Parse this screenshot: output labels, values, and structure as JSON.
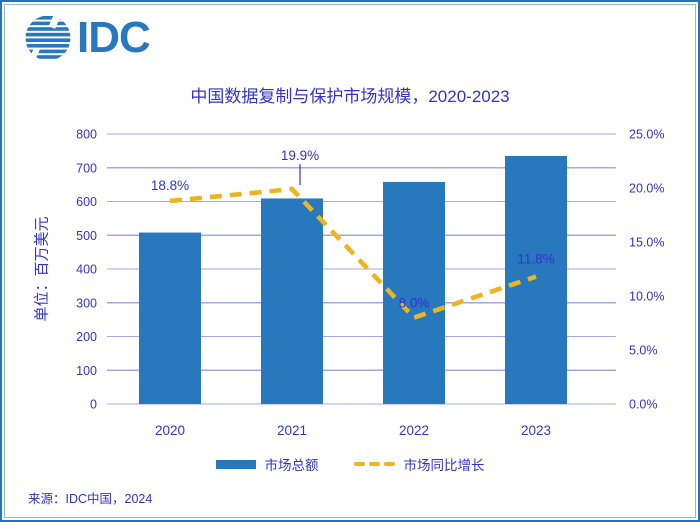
{
  "logo": {
    "text": "IDC"
  },
  "title": "中国数据复制与保护市场规模，2020-2023",
  "source": "来源：IDC中国，2024",
  "colors": {
    "accent_text": "#3333CC",
    "bar": "#2878BE",
    "line": "#ECB420",
    "grid": "#A6A6E6",
    "border": "#2474BC",
    "logo_blue": "#2878BE",
    "label_on_bar": "#FFFFFF"
  },
  "chart_data": {
    "type": "bar",
    "title": "中国数据复制与保护市场规模，2020-2023",
    "categories": [
      "2020",
      "2021",
      "2022",
      "2023"
    ],
    "series": [
      {
        "name": "市场总额",
        "type": "bar",
        "axis": "left",
        "values": [
          508,
          609,
          658,
          735
        ]
      },
      {
        "name": "市场同比增长",
        "type": "line",
        "style": "dashed",
        "axis": "right",
        "values": [
          18.8,
          19.9,
          8.0,
          11.8
        ],
        "point_labels": [
          "18.8%",
          "19.9%",
          "8.0%",
          "11.8%"
        ],
        "point_label_colors": [
          "#3333CC",
          "#3333CC",
          "#FFFFFF",
          "#FFFFFF"
        ]
      }
    ],
    "left_axis": {
      "label": "单位：百万美元",
      "min": 0,
      "max": 800,
      "step": 100,
      "ticks": [
        "0",
        "100",
        "200",
        "300",
        "400",
        "500",
        "600",
        "700",
        "800"
      ]
    },
    "right_axis": {
      "min": 0,
      "max": 25,
      "step": 5,
      "ticks": [
        "0.0%",
        "5.0%",
        "10.0%",
        "15.0%",
        "20.0%",
        "25.0%"
      ]
    },
    "grid": true,
    "legend_position": "bottom"
  }
}
